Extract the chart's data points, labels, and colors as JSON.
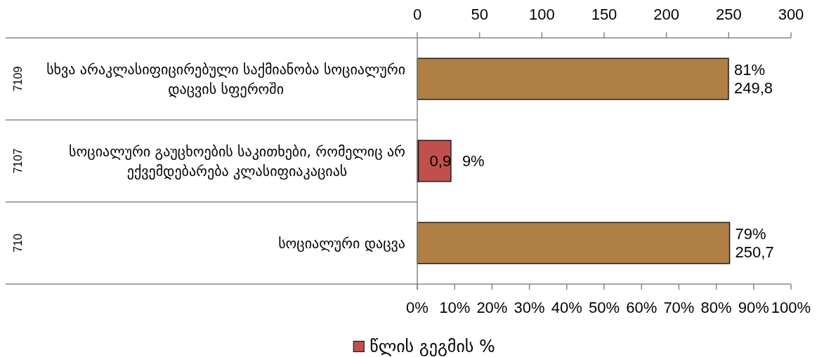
{
  "chart_data": {
    "type": "bar",
    "orientation": "horizontal",
    "categories": [
      "სხვა არაკლასიფიცირებული საქმიანობა სოციალური დაცვის სფეროში",
      "სოციალური გაუცხოების საკითხები, რომელიც არ ექვემდებარება კლასიფიაკაციას",
      "სოციალური დაცვა"
    ],
    "y2_categories": [
      "7109",
      "7107",
      "710"
    ],
    "series": [
      {
        "color": "#b07f44",
        "axis": "x2",
        "values": [
          249.8,
          0.9,
          250.7
        ],
        "value_labels": [
          "249,8",
          "0,9",
          "250,7"
        ]
      },
      {
        "name": "წლის გეგმის %",
        "color": "#c0504d",
        "values": [
          null,
          9,
          null
        ],
        "value_labels": [
          null,
          "9%",
          null
        ]
      }
    ],
    "annotations": [
      "81%",
      "79%"
    ],
    "xlim": [
      0,
      100
    ],
    "xticks": [
      {
        "value": 0,
        "label": "0%"
      },
      {
        "value": 10,
        "label": "10%"
      },
      {
        "value": 20,
        "label": "20%"
      },
      {
        "value": 30,
        "label": "30%"
      },
      {
        "value": 40,
        "label": "40%"
      },
      {
        "value": 50,
        "label": "50%"
      },
      {
        "value": 60,
        "label": "60%"
      },
      {
        "value": 70,
        "label": "70%"
      },
      {
        "value": 80,
        "label": "80%"
      },
      {
        "value": 90,
        "label": "90%"
      },
      {
        "value": 100,
        "label": "100%"
      }
    ],
    "x2lim": [
      0,
      300
    ],
    "x2ticks": [
      0,
      50,
      100,
      150,
      200,
      250,
      300
    ],
    "legend": "bottom"
  }
}
